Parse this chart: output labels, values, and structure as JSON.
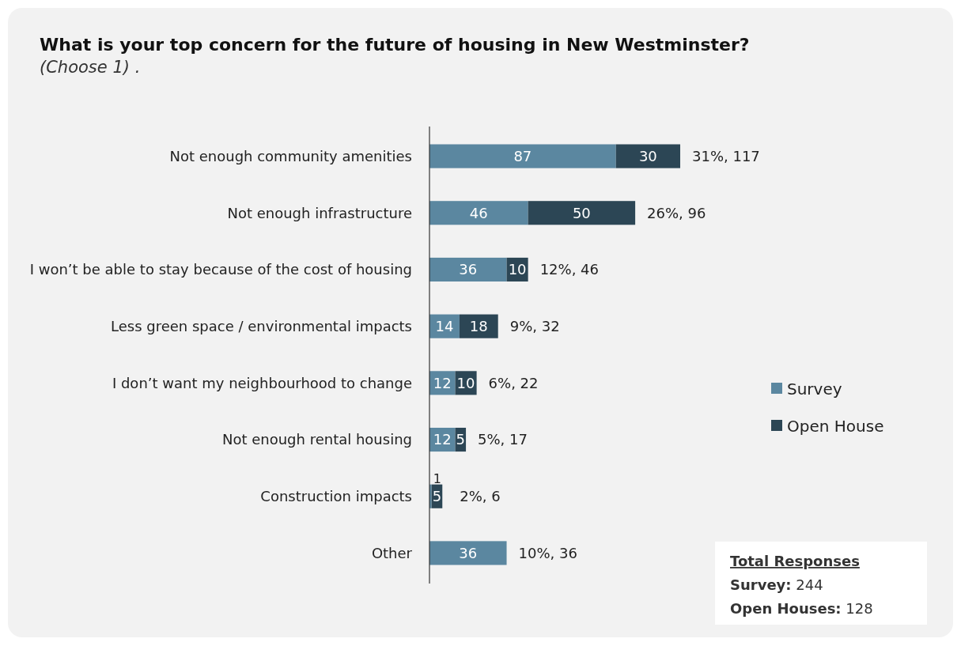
{
  "chart_data": {
    "type": "bar",
    "orientation": "horizontal",
    "stacked": true,
    "title": "What is your top concern for the future of housing in New Westminster?",
    "subtitle": "(Choose 1) .",
    "categories": [
      "Not enough community amenities",
      "Not enough infrastructure",
      "I won’t be able to stay because of the cost of housing",
      "Less green space / environmental impacts",
      "I don’t want my neighbourhood to change",
      "Not enough rental housing",
      "Construction impacts",
      "Other"
    ],
    "series": [
      {
        "name": "Survey",
        "color": "#5b87a0",
        "values": [
          87,
          46,
          36,
          14,
          12,
          12,
          1,
          36
        ]
      },
      {
        "name": "Open House",
        "color": "#2c4655",
        "values": [
          30,
          50,
          10,
          18,
          10,
          5,
          5,
          null
        ]
      }
    ],
    "data_labels": true,
    "totals": [
      "31%, 117",
      "26%, 96",
      "12%, 46",
      "9%, 32",
      "6%, 22",
      "5%, 17",
      "2%, 6",
      "10%, 36"
    ],
    "legend": "right",
    "annotations": [
      "Total Responses",
      "Survey: 244",
      "Open Houses: 128"
    ]
  }
}
